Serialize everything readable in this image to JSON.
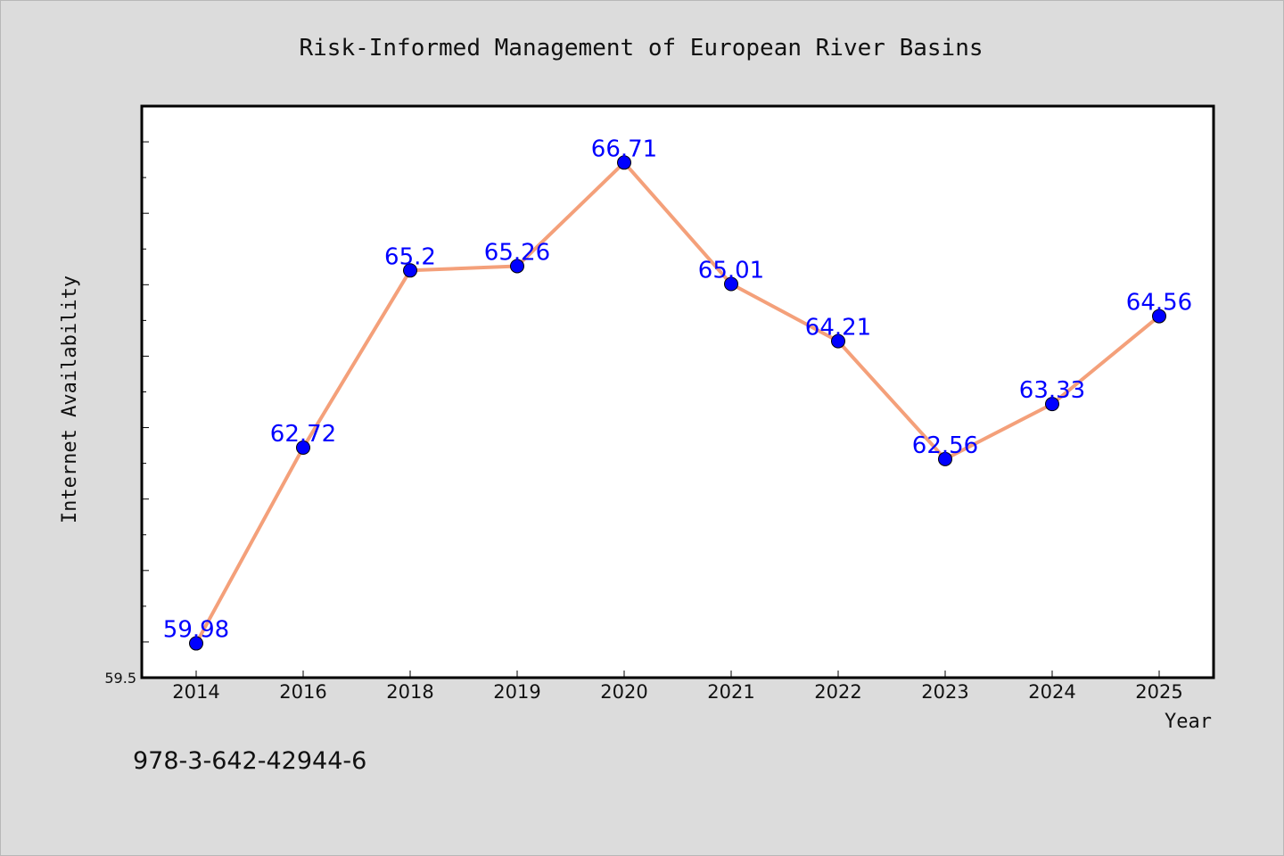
{
  "chart_data": {
    "type": "line",
    "title": "Risk-Informed Management of European River Basins",
    "xlabel": "Year",
    "ylabel": "Internet Availability",
    "categories": [
      "2014",
      "2016",
      "2018",
      "2019",
      "2020",
      "2021",
      "2022",
      "2023",
      "2024",
      "2025"
    ],
    "series": [
      {
        "values": [
          59.98,
          62.72,
          65.2,
          65.26,
          66.71,
          65.01,
          64.21,
          62.56,
          63.33,
          64.56
        ],
        "line_color": "#f4a07a",
        "marker_color": "#0000ff",
        "label_color": "#0000ff"
      }
    ],
    "ylim": [
      59.5,
      67.5
    ],
    "yticks_labeled": [
      "59.5"
    ],
    "grid": false,
    "legend": "none"
  },
  "footer": {
    "isbn": "978-3-642-42944-6"
  }
}
